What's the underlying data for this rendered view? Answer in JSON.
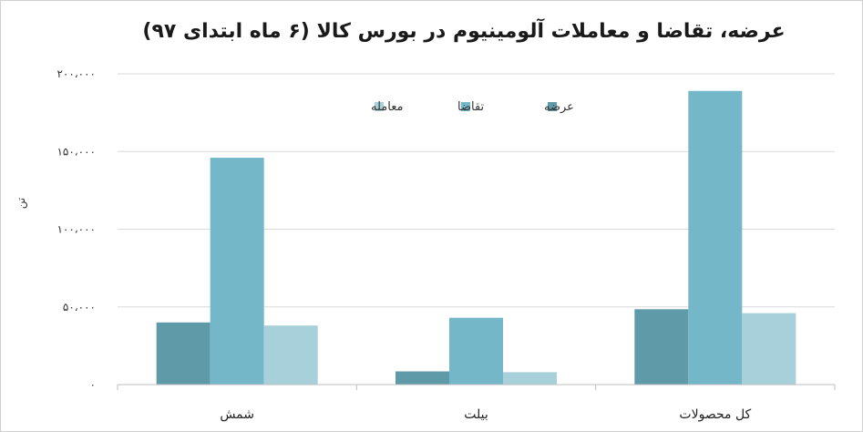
{
  "chart_data": {
    "type": "bar",
    "title": "عرضه، تقاضا و معاملات آلومینیوم در بورس کالا (۶ ماه ابتدای ۹۷)",
    "ylabel": "تن",
    "xlabel": "",
    "categories": [
      "شمش",
      "بیلت",
      "کل محصولات"
    ],
    "series": [
      {
        "name": "عرضه",
        "color": "#5f9aa8",
        "values": [
          40000,
          8500,
          48500
        ]
      },
      {
        "name": "تقاضا",
        "color": "#74b7c9",
        "values": [
          146000,
          43000,
          189000
        ]
      },
      {
        "name": "معامله",
        "color": "#a8d0da",
        "values": [
          38000,
          8000,
          46000
        ]
      }
    ],
    "ylim": [
      0,
      200000
    ],
    "yticks": [
      0,
      50000,
      100000,
      150000,
      200000
    ],
    "ytick_labels": [
      "۰",
      "۵۰،۰۰۰",
      "۱۰۰،۰۰۰",
      "۱۵۰،۰۰۰",
      "۲۰۰،۰۰۰"
    ],
    "grid": true,
    "legend_position": "top-center"
  }
}
